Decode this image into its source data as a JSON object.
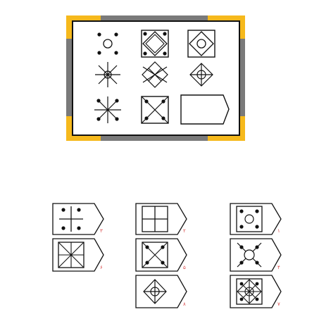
{
  "puzzle": {
    "frame_colors": {
      "corner": "#f6b91c",
      "side": "#7a7a7a",
      "line": "#111111"
    },
    "grid_cells": [
      {
        "symbol": "four-dots-circle-icon"
      },
      {
        "symbol": "diamond-in-square-dots-icon"
      },
      {
        "symbol": "diamond-circle-in-square-icon"
      },
      {
        "symbol": "eight-line-star-circle-icon"
      },
      {
        "symbol": "crossed-diamond-lattice-icon"
      },
      {
        "symbol": "diamond-circle-cross-icon"
      },
      {
        "symbol": "eight-line-star-dots-icon"
      },
      {
        "symbol": "square-x-dots-icon"
      },
      {
        "symbol": "missing-answer-slot"
      }
    ]
  },
  "options": [
    {
      "label": "۱",
      "symbol": "square-circle-dots-icon"
    },
    {
      "label": "۲",
      "symbol": "square-four-windows-icon"
    },
    {
      "label": "۳",
      "symbol": "cross-four-dots-icon"
    },
    {
      "label": "۴",
      "symbol": "x-circle-dots-icon"
    },
    {
      "label": "۵",
      "symbol": "square-x-dots-icon"
    },
    {
      "label": "۶",
      "symbol": "square-eight-lines-icon"
    },
    {
      "label": "۷",
      "symbol": "square-diamond-star-circle-icon"
    },
    {
      "label": "۸",
      "symbol": "diamond-circle-cross-icon"
    }
  ]
}
